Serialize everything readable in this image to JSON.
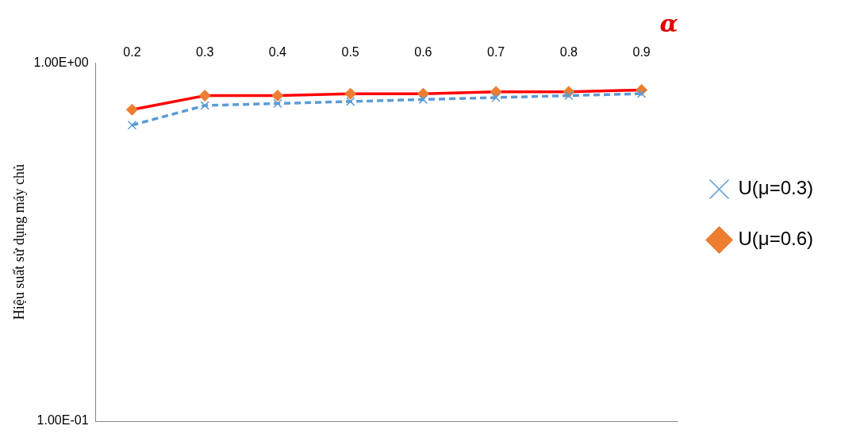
{
  "chart_data": {
    "type": "line",
    "xlabel": "α",
    "ylabel": "Hiệu suất sử dụng máy chủ",
    "categories": [
      "0.2",
      "0.3",
      "0.4",
      "0.5",
      "0.6",
      "0.7",
      "0.8",
      "0.9"
    ],
    "series": [
      {
        "name": "U(μ=0.3)",
        "color": "#5b9bd5",
        "marker": "cross",
        "line_style": "dashed",
        "values": [
          0.67,
          0.76,
          0.77,
          0.78,
          0.79,
          0.8,
          0.81,
          0.82
        ]
      },
      {
        "name": "U(μ=0.6)",
        "color": "#ff0000",
        "marker": "diamond",
        "line_style": "solid",
        "values": [
          0.74,
          0.81,
          0.81,
          0.82,
          0.82,
          0.83,
          0.83,
          0.84
        ]
      }
    ],
    "log": "y",
    "ylim": [
      0.1,
      1
    ],
    "yticks": [
      {
        "value": 0.1,
        "label": "1.00E-01"
      },
      {
        "value": 1,
        "label": "1.00E+00"
      }
    ],
    "grid": false,
    "legend": "right"
  }
}
